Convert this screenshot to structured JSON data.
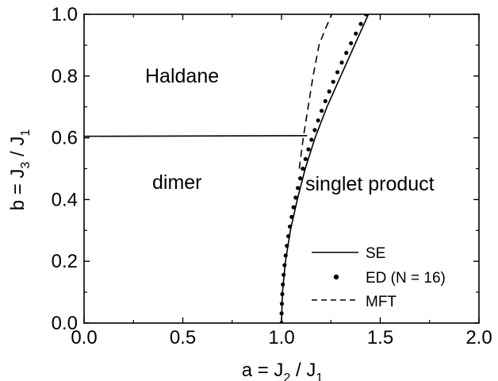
{
  "chart_data": {
    "type": "line",
    "xlabel": {
      "main": "a = J",
      "sub1": "2",
      "mid": " / J",
      "sub2": "1"
    },
    "ylabel": {
      "main": "b = J",
      "sub1": "3",
      "mid": " / J",
      "sub2": "1"
    },
    "xlim": [
      0.0,
      2.0
    ],
    "ylim": [
      0.0,
      1.0
    ],
    "x_ticks": [
      "0.0",
      "0.5",
      "1.0",
      "1.5",
      "2.0"
    ],
    "y_ticks": [
      "0.0",
      "0.2",
      "0.4",
      "0.6",
      "0.8",
      "1.0"
    ],
    "grid": false,
    "legend_position": "bottom-right",
    "regions": [
      "Haldane",
      "dimer",
      "singlet product"
    ],
    "series": [
      {
        "name": "SE",
        "style": "solid",
        "x": [
          0.0,
          1.13
        ],
        "y": [
          0.605,
          0.607
        ]
      },
      {
        "name": "SE",
        "style": "solid",
        "x": [
          1.0,
          1.005,
          1.02,
          1.045,
          1.08,
          1.12,
          1.17,
          1.23,
          1.3,
          1.37,
          1.44,
          1.48
        ],
        "y": [
          0.0,
          0.1,
          0.2,
          0.3,
          0.4,
          0.5,
          0.6,
          0.7,
          0.8,
          0.9,
          1.0,
          1.05
        ]
      },
      {
        "name": "ED (N = 16)",
        "style": "dots",
        "x": [
          1.0,
          1.0004,
          1.0017,
          1.0039,
          1.0069,
          1.0107,
          1.0154,
          1.0209,
          1.0272,
          1.0344,
          1.0425,
          1.0513,
          1.061,
          1.0715,
          1.0828,
          1.095,
          1.108,
          1.1218,
          1.1364,
          1.1519,
          1.1682,
          1.1853,
          1.2032,
          1.222,
          1.2416,
          1.262,
          1.2832,
          1.3053,
          1.3282,
          1.3519,
          1.3764,
          1.4018,
          1.428
        ],
        "y": [
          0.0,
          0.03125,
          0.0625,
          0.09375,
          0.125,
          0.15625,
          0.1875,
          0.21875,
          0.25,
          0.28125,
          0.3125,
          0.34375,
          0.375,
          0.40625,
          0.4375,
          0.46875,
          0.5,
          0.53125,
          0.5625,
          0.59375,
          0.625,
          0.65625,
          0.6875,
          0.71875,
          0.75,
          0.78125,
          0.8125,
          0.84375,
          0.875,
          0.90625,
          0.9375,
          0.96875,
          1.0
        ]
      },
      {
        "name": "MFT",
        "style": "dashed",
        "x": [
          1.09,
          1.11,
          1.135,
          1.16,
          1.19,
          1.22,
          1.255
        ],
        "y": [
          0.5,
          0.6,
          0.7,
          0.8,
          0.9,
          0.95,
          1.0
        ]
      }
    ],
    "legend": [
      {
        "label": "SE",
        "style": "solid"
      },
      {
        "label": "ED (N = 16)",
        "style": "dots"
      },
      {
        "label": "MFT",
        "style": "dashed"
      }
    ]
  }
}
